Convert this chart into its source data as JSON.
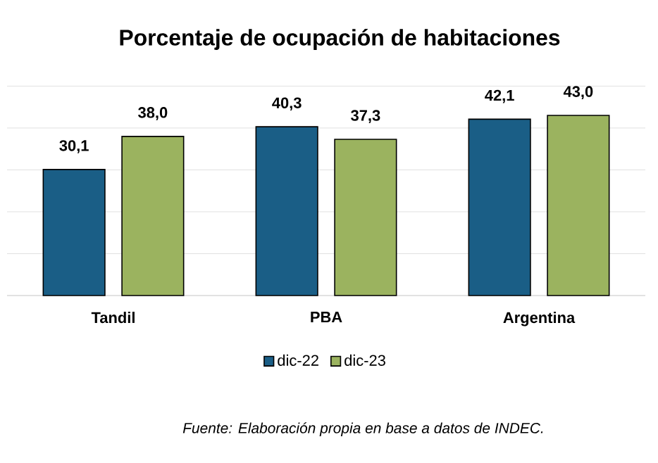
{
  "chart_data": {
    "type": "bar",
    "title": "Porcentaje de ocupación de habitaciones",
    "categories": [
      "Tandil",
      "PBA",
      "Argentina"
    ],
    "series": [
      {
        "name": "dic-22",
        "color": "#1a5e86",
        "values": [
          30.1,
          40.3,
          42.1
        ],
        "value_labels": [
          "30,1",
          "40,3",
          "42,1"
        ]
      },
      {
        "name": "dic-23",
        "color": "#9bb35f",
        "values": [
          38.0,
          37.3,
          43.0
        ],
        "value_labels": [
          "38,0",
          "37,3",
          "43,0"
        ]
      }
    ],
    "tick_labels": "x",
    "grid": "y",
    "legend": "bottom",
    "annotations": [
      "Fuente: Elaboración propia en base a datos de INDEC."
    ]
  }
}
